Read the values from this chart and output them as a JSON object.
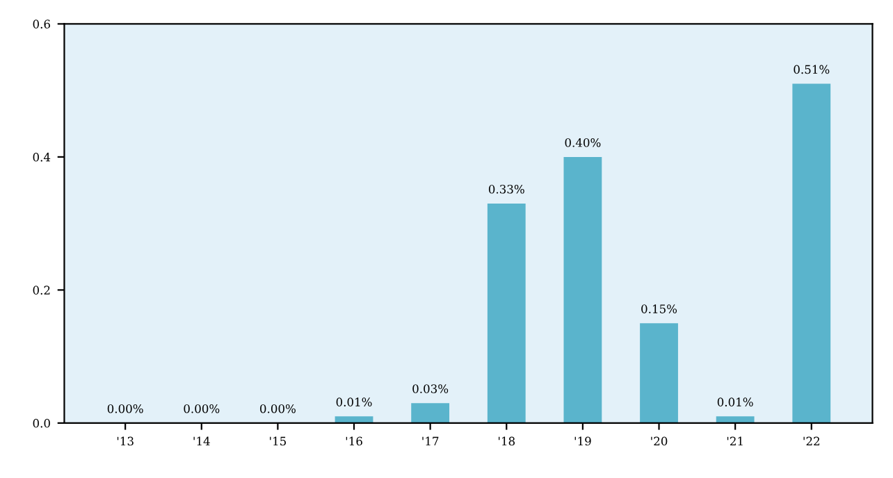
{
  "chart_data": {
    "type": "bar",
    "categories": [
      "'13",
      "'14",
      "'15",
      "'16",
      "'17",
      "'18",
      "'19",
      "'20",
      "'21",
      "'22"
    ],
    "values": [
      0.0,
      0.0,
      0.0,
      0.01,
      0.03,
      0.33,
      0.4,
      0.15,
      0.01,
      0.51
    ],
    "value_labels": [
      "0.00%",
      "0.00%",
      "0.00%",
      "0.01%",
      "0.03%",
      "0.33%",
      "0.40%",
      "0.15%",
      "0.01%",
      "0.51%"
    ],
    "color": "#5ab4cc",
    "ylim": [
      0,
      0.6
    ],
    "yticks": [
      {
        "value": 0,
        "label": "0.0"
      },
      {
        "value": 0.2,
        "label": "0.2"
      },
      {
        "value": 0.4,
        "label": "0.4"
      },
      {
        "value": 0.6,
        "label": "0.6"
      }
    ],
    "grid": false
  }
}
